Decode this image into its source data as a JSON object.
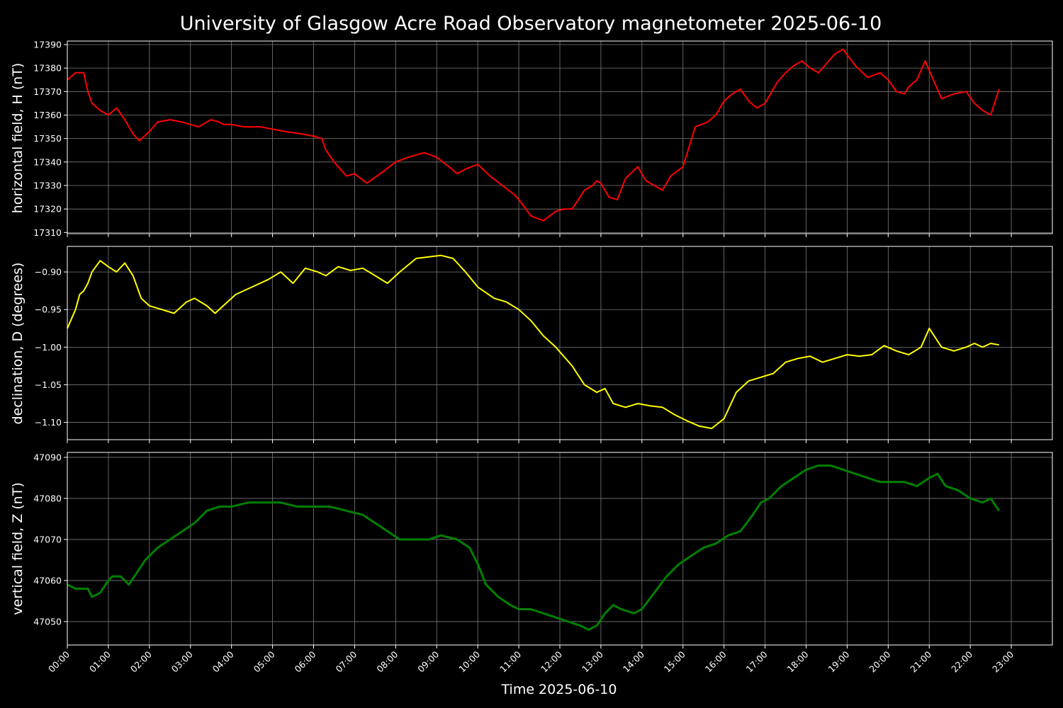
{
  "chart_data": {
    "type": "line",
    "title": "University of Glasgow Acre Road Observatory magnetometer 2025-06-10",
    "xlabel": "Time 2025-06-10",
    "x_ticks": [
      "00:00",
      "01:00",
      "02:00",
      "03:00",
      "04:00",
      "05:00",
      "06:00",
      "07:00",
      "08:00",
      "09:00",
      "10:00",
      "11:00",
      "12:00",
      "13:00",
      "14:00",
      "15:00",
      "16:00",
      "17:00",
      "18:00",
      "19:00",
      "20:00",
      "21:00",
      "22:00",
      "23:00"
    ],
    "xlim_hours": [
      0,
      24
    ],
    "grid": true,
    "panels": [
      {
        "name": "H",
        "ylabel": "horizontal field, H (nT)",
        "color": "#ff0000",
        "ylim": [
          17309.5,
          17391.5
        ],
        "yticks": [
          17310,
          17320,
          17330,
          17340,
          17350,
          17360,
          17370,
          17380,
          17390
        ],
        "ytick_labels": [
          "17310",
          "17320",
          "17330",
          "17340",
          "17350",
          "17360",
          "17370",
          "17380",
          "17390"
        ],
        "x_hours": [
          0,
          0.2,
          0.4,
          0.5,
          0.6,
          0.8,
          1.0,
          1.2,
          1.4,
          1.6,
          1.75,
          2.0,
          2.2,
          2.5,
          2.8,
          3.0,
          3.2,
          3.5,
          3.7,
          3.8,
          4.0,
          4.3,
          4.7,
          5.0,
          5.3,
          5.7,
          6.0,
          6.2,
          6.3,
          6.5,
          6.8,
          7.0,
          7.3,
          7.7,
          8.0,
          8.3,
          8.7,
          9.0,
          9.3,
          9.5,
          9.7,
          10.0,
          10.3,
          10.6,
          10.9,
          11.0,
          11.3,
          11.6,
          11.9,
          12.1,
          12.3,
          12.6,
          12.8,
          12.9,
          13.0,
          13.2,
          13.4,
          13.6,
          13.9,
          14.1,
          14.3,
          14.5,
          14.7,
          15.0,
          15.3,
          15.6,
          15.8,
          16.0,
          16.2,
          16.4,
          16.6,
          16.8,
          17.0,
          17.3,
          17.5,
          17.7,
          17.9,
          18.1,
          18.3,
          18.5,
          18.7,
          18.9,
          19.2,
          19.5,
          19.8,
          20.0,
          20.2,
          20.4,
          20.5,
          20.7,
          20.9,
          21.1,
          21.3,
          21.6,
          21.9,
          22.1,
          22.3,
          22.5,
          22.7
        ],
        "values": [
          17375,
          17378,
          17378,
          17370,
          17365,
          17362,
          17360,
          17363,
          17358,
          17352,
          17349,
          17353,
          17357,
          17358,
          17357,
          17356,
          17355,
          17358,
          17357,
          17356,
          17356,
          17355,
          17355,
          17354,
          17353,
          17352,
          17351,
          17350,
          17345,
          17340,
          17334,
          17335,
          17331,
          17336,
          17340,
          17342,
          17344,
          17342,
          17338,
          17335,
          17337,
          17339,
          17334,
          17330,
          17326,
          17324,
          17317,
          17315,
          17319,
          17320,
          17320,
          17328,
          17330,
          17332,
          17331,
          17325,
          17324,
          17333,
          17338,
          17332,
          17330,
          17328,
          17334,
          17338,
          17355,
          17357,
          17360,
          17366,
          17369,
          17371,
          17366,
          17363,
          17365,
          17374,
          17378,
          17381,
          17383,
          17380,
          17378,
          17382,
          17386,
          17388,
          17381,
          17376,
          17378,
          17375,
          17370,
          17369,
          17372,
          17375,
          17383,
          17375,
          17367,
          17369,
          17370,
          17365,
          17362,
          17360,
          17371
        ]
      },
      {
        "name": "D",
        "ylabel": "declination, D (degrees)",
        "color": "#ffff00",
        "ylim": [
          -1.123,
          -0.866
        ],
        "yticks": [
          -1.1,
          -1.05,
          -1.0,
          -0.95,
          -0.9
        ],
        "ytick_labels": [
          "−1.10",
          "−1.05",
          "−1.00",
          "−0.95",
          "−0.90"
        ],
        "x_hours": [
          0,
          0.2,
          0.3,
          0.4,
          0.5,
          0.6,
          0.8,
          1.0,
          1.2,
          1.4,
          1.6,
          1.8,
          2.0,
          2.3,
          2.6,
          2.9,
          3.1,
          3.4,
          3.6,
          3.8,
          4.1,
          4.5,
          4.9,
          5.2,
          5.5,
          5.8,
          6.1,
          6.3,
          6.6,
          6.9,
          7.2,
          7.5,
          7.8,
          8.1,
          8.5,
          8.8,
          9.1,
          9.4,
          9.7,
          10.0,
          10.4,
          10.7,
          11.0,
          11.3,
          11.6,
          11.9,
          12.3,
          12.6,
          12.9,
          13.1,
          13.3,
          13.6,
          13.9,
          14.2,
          14.5,
          14.8,
          15.1,
          15.4,
          15.7,
          16.0,
          16.3,
          16.6,
          16.9,
          17.2,
          17.5,
          17.8,
          18.1,
          18.4,
          18.7,
          19.0,
          19.3,
          19.6,
          19.9,
          20.2,
          20.5,
          20.8,
          21.0,
          21.3,
          21.6,
          21.9,
          22.1,
          22.3,
          22.5,
          22.7
        ],
        "values": [
          -0.975,
          -0.95,
          -0.93,
          -0.925,
          -0.915,
          -0.9,
          -0.885,
          -0.893,
          -0.9,
          -0.888,
          -0.905,
          -0.935,
          -0.945,
          -0.95,
          -0.955,
          -0.94,
          -0.935,
          -0.945,
          -0.955,
          -0.945,
          -0.93,
          -0.92,
          -0.91,
          -0.9,
          -0.915,
          -0.895,
          -0.9,
          -0.905,
          -0.893,
          -0.898,
          -0.895,
          -0.905,
          -0.915,
          -0.9,
          -0.882,
          -0.88,
          -0.878,
          -0.882,
          -0.9,
          -0.92,
          -0.935,
          -0.94,
          -0.95,
          -0.965,
          -0.985,
          -1.0,
          -1.025,
          -1.05,
          -1.06,
          -1.055,
          -1.075,
          -1.08,
          -1.075,
          -1.078,
          -1.08,
          -1.09,
          -1.098,
          -1.105,
          -1.108,
          -1.095,
          -1.06,
          -1.045,
          -1.04,
          -1.035,
          -1.02,
          -1.015,
          -1.012,
          -1.02,
          -1.015,
          -1.01,
          -1.012,
          -1.01,
          -0.998,
          -1.005,
          -1.01,
          -1.0,
          -0.975,
          -1.0,
          -1.005,
          -1.0,
          -0.995,
          -1.0,
          -0.995,
          -0.997
        ]
      },
      {
        "name": "Z",
        "ylabel": "vertical field, Z (nT)",
        "color": "#008000",
        "ylim": [
          47044.3,
          47091.2
        ],
        "yticks": [
          47050,
          47060,
          47070,
          47080,
          47090
        ],
        "ytick_labels": [
          "47050",
          "47060",
          "47070",
          "47080",
          "47090"
        ],
        "x_hours": [
          0,
          0.2,
          0.4,
          0.5,
          0.6,
          0.8,
          1.0,
          1.1,
          1.3,
          1.5,
          1.7,
          1.9,
          2.2,
          2.5,
          2.8,
          3.1,
          3.4,
          3.7,
          4.0,
          4.4,
          4.8,
          5.2,
          5.6,
          6.0,
          6.4,
          6.8,
          7.2,
          7.5,
          7.8,
          8.1,
          8.4,
          8.8,
          9.1,
          9.5,
          9.8,
          10.0,
          10.2,
          10.5,
          10.8,
          11.0,
          11.3,
          11.6,
          11.9,
          12.2,
          12.5,
          12.7,
          12.9,
          13.1,
          13.3,
          13.5,
          13.8,
          14.0,
          14.3,
          14.6,
          14.9,
          15.2,
          15.5,
          15.8,
          16.1,
          16.4,
          16.7,
          16.9,
          17.1,
          17.4,
          17.7,
          18.0,
          18.3,
          18.6,
          18.9,
          19.2,
          19.5,
          19.8,
          20.1,
          20.4,
          20.7,
          21.0,
          21.2,
          21.4,
          21.7,
          22.0,
          22.3,
          22.5,
          22.7
        ],
        "values": [
          47059,
          47058,
          47058,
          47058,
          47056,
          47057,
          47060,
          47061,
          47061,
          47059,
          47062,
          47065,
          47068,
          47070,
          47072,
          47074,
          47077,
          47078,
          47078,
          47079,
          47079,
          47079,
          47078,
          47078,
          47078,
          47077,
          47076,
          47074,
          47072,
          47070,
          47070,
          47070,
          47071,
          47070,
          47068,
          47064,
          47059,
          47056,
          47054,
          47053,
          47053,
          47052,
          47051,
          47050,
          47049,
          47048,
          47049,
          47052,
          47054,
          47053,
          47052,
          47053,
          47057,
          47061,
          47064,
          47066,
          47068,
          47069,
          47071,
          47072,
          47076,
          47079,
          47080,
          47083,
          47085,
          47087,
          47088,
          47088,
          47087,
          47086,
          47085,
          47084,
          47084,
          47084,
          47083,
          47085,
          47086,
          47083,
          47082,
          47080,
          47079,
          47080,
          47077
        ]
      }
    ]
  }
}
